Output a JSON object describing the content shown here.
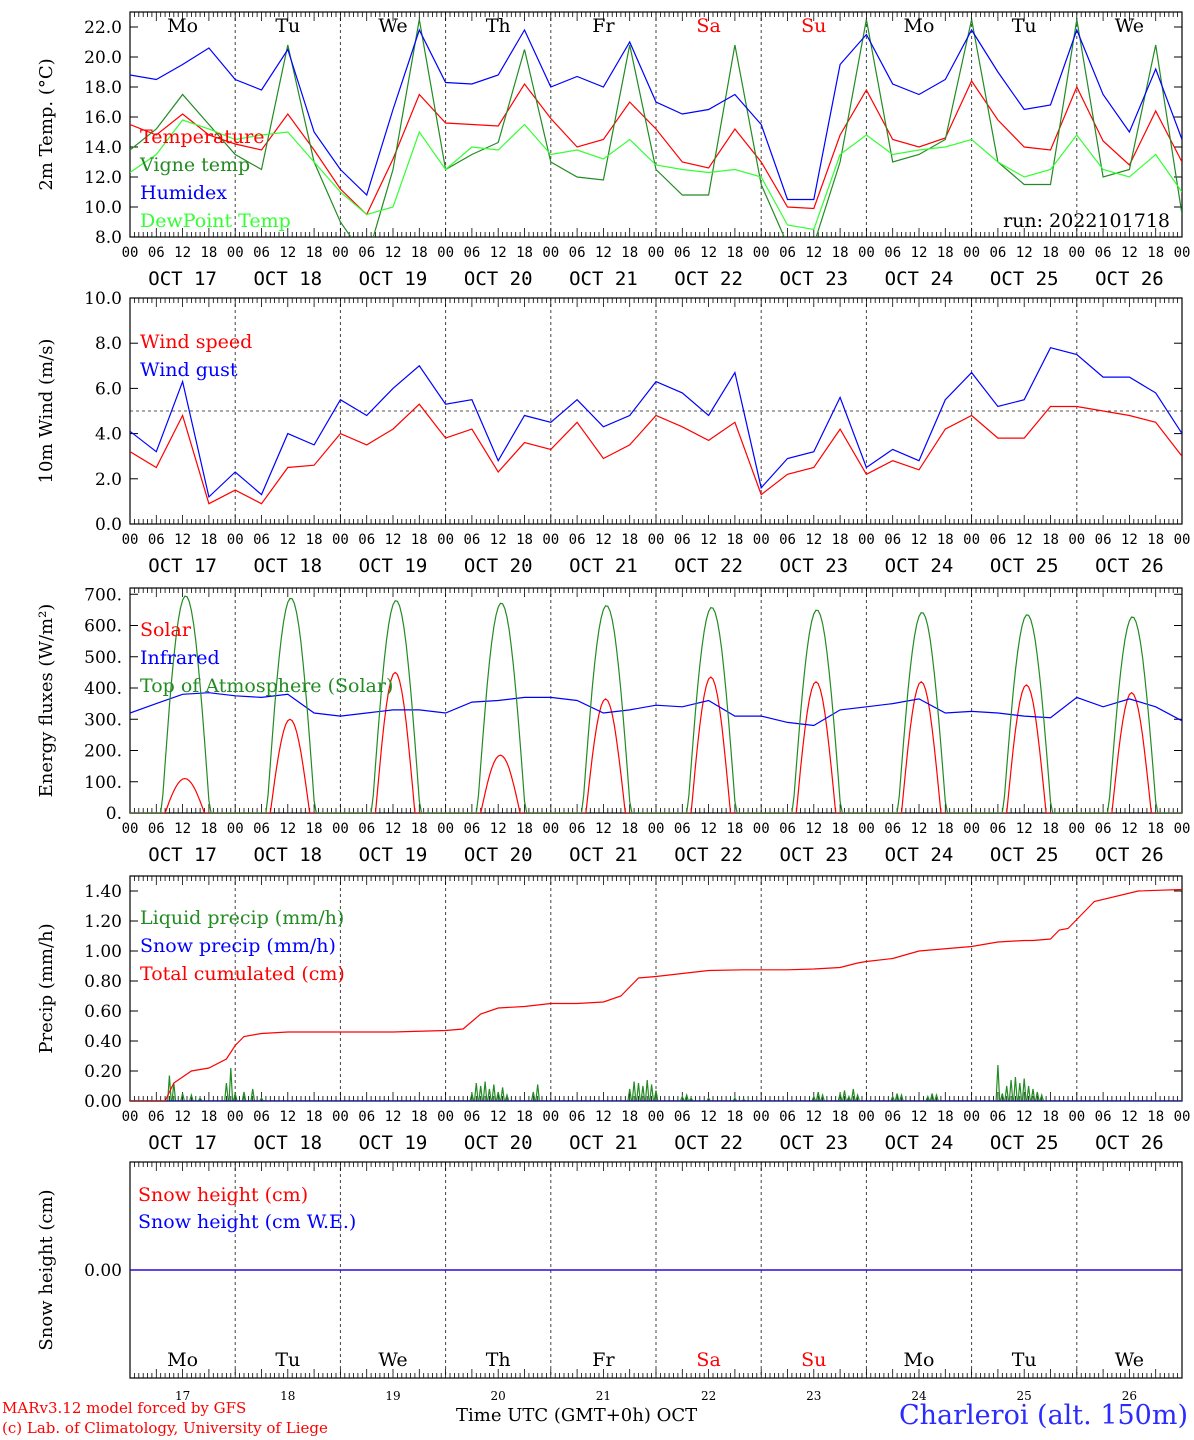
{
  "run_label": "run: 2022101718",
  "station": "Charleroi (alt. 150m)",
  "credits": [
    "MARv3.12 model forced by GFS",
    "(c) Lab. of Climatology, University of Liege"
  ],
  "time_axis": {
    "title": "Time UTC (GMT+0h) OCT",
    "hours": [
      "00",
      "06",
      "12",
      "18"
    ],
    "last_hour": "00",
    "day_labels": [
      "OCT 17",
      "OCT 18",
      "OCT 19",
      "OCT 20",
      "OCT 21",
      "OCT 22",
      "OCT 23",
      "OCT 24",
      "OCT 25",
      "OCT 26"
    ],
    "weekdays": [
      "Mo",
      "Tu",
      "We",
      "Th",
      "Fr",
      "Sa",
      "Su",
      "Mo",
      "Tu",
      "We"
    ],
    "weekend_color": "#ff0000",
    "day_numbers": [
      "17",
      "18",
      "19",
      "20",
      "21",
      "22",
      "23",
      "24",
      "25",
      "26"
    ]
  },
  "chart_data": [
    {
      "id": "temp",
      "type": "line",
      "ylabel": "2m Temp. (°C)",
      "ylim": [
        8,
        23
      ],
      "yticks": [
        8,
        10,
        12,
        14,
        16,
        18,
        20,
        22
      ],
      "decimals": 1,
      "show_weekdays": true,
      "series": [
        {
          "name": "Temperature",
          "color": "#ff0000",
          "x": [
            0,
            6,
            12,
            15,
            18,
            24,
            30,
            36,
            42,
            48,
            54,
            60,
            66,
            72,
            78,
            84,
            90,
            96,
            102,
            108,
            114,
            120,
            126,
            132,
            138,
            144,
            150,
            156,
            162,
            168,
            174,
            180,
            186,
            192,
            198,
            204,
            210,
            216,
            222,
            228,
            234,
            240
          ],
          "y": [
            15.5,
            14.8,
            16.2,
            15.5,
            14.8,
            14.2,
            13.8,
            16.2,
            13.8,
            11.2,
            9.5,
            13.2,
            17.5,
            15.6,
            15.5,
            15.4,
            18.2,
            15.9,
            14.0,
            14.5,
            17.0,
            15.2,
            13.0,
            12.6,
            15.2,
            13.0,
            10.0,
            9.9,
            14.8,
            17.8,
            14.5,
            14.0,
            14.6,
            18.4,
            15.8,
            14.0,
            13.8,
            18.0,
            14.4,
            12.8,
            16.4,
            13.0
          ]
        },
        {
          "name": "Vigne temp",
          "color": "#228b22",
          "x": [
            0,
            6,
            12,
            18,
            24,
            30,
            36,
            42,
            48,
            54,
            60,
            66,
            72,
            78,
            84,
            90,
            96,
            102,
            108,
            114,
            120,
            126,
            132,
            138,
            144,
            150,
            156,
            162,
            168,
            174,
            180,
            186,
            192,
            198,
            204,
            210,
            216,
            222,
            228,
            234,
            240
          ],
          "y": [
            13.8,
            15.2,
            17.5,
            15.5,
            13.5,
            12.5,
            20.8,
            13.0,
            9.0,
            6.5,
            12.5,
            22.5,
            12.5,
            13.5,
            14.3,
            20.5,
            13.0,
            12.0,
            11.8,
            20.8,
            12.5,
            10.8,
            10.8,
            20.8,
            11.5,
            7.5,
            7.5,
            13.0,
            22.5,
            13.0,
            13.5,
            14.5,
            22.5,
            13.0,
            11.5,
            11.5,
            22.5,
            12.0,
            12.5,
            20.8,
            9.5
          ]
        },
        {
          "name": "Humidex",
          "color": "#0000ff",
          "x": [
            0,
            6,
            12,
            18,
            24,
            30,
            36,
            42,
            48,
            54,
            60,
            66,
            72,
            78,
            84,
            90,
            96,
            102,
            108,
            114,
            120,
            126,
            132,
            138,
            144,
            150,
            156,
            162,
            168,
            174,
            180,
            186,
            192,
            198,
            204,
            210,
            216,
            222,
            228,
            234,
            240
          ],
          "y": [
            18.8,
            18.5,
            19.5,
            20.6,
            18.5,
            17.8,
            20.5,
            15.0,
            12.5,
            10.8,
            16.5,
            21.8,
            18.3,
            18.2,
            18.8,
            21.8,
            18.0,
            18.7,
            18.0,
            21.0,
            17.0,
            16.2,
            16.5,
            17.5,
            15.5,
            10.5,
            10.5,
            19.5,
            21.5,
            18.2,
            17.5,
            18.5,
            21.8,
            19.0,
            16.5,
            16.8,
            21.8,
            17.5,
            15.0,
            19.2,
            14.5
          ]
        },
        {
          "name": "DewPoint Temp",
          "color": "#33ff33",
          "x": [
            0,
            6,
            12,
            18,
            24,
            30,
            36,
            42,
            48,
            54,
            60,
            66,
            72,
            78,
            84,
            90,
            96,
            102,
            108,
            114,
            120,
            126,
            132,
            138,
            144,
            150,
            156,
            162,
            168,
            174,
            180,
            186,
            192,
            198,
            204,
            210,
            216,
            222,
            228,
            234,
            240
          ],
          "y": [
            12.3,
            13.5,
            15.8,
            15.2,
            14.5,
            14.8,
            15.0,
            13.0,
            11.0,
            9.5,
            10.0,
            15.0,
            12.5,
            14.0,
            13.8,
            15.5,
            13.5,
            13.8,
            13.2,
            14.5,
            12.8,
            12.5,
            12.3,
            12.5,
            12.0,
            8.8,
            8.5,
            13.5,
            14.8,
            13.5,
            13.8,
            14.0,
            14.5,
            13.0,
            12.0,
            12.5,
            14.8,
            12.5,
            12.0,
            13.5,
            11.0
          ]
        }
      ]
    },
    {
      "id": "wind",
      "type": "line",
      "ylabel": "10m Wind (m/s)",
      "ylim": [
        0,
        10
      ],
      "yticks": [
        0,
        2,
        4,
        6,
        8,
        10
      ],
      "decimals": 1,
      "ref_line": 5.0,
      "series": [
        {
          "name": "Wind speed",
          "color": "#ff0000",
          "x": [
            0,
            6,
            12,
            18,
            24,
            30,
            36,
            42,
            48,
            54,
            60,
            66,
            72,
            78,
            84,
            90,
            96,
            102,
            108,
            114,
            120,
            126,
            132,
            138,
            144,
            150,
            156,
            162,
            168,
            174,
            180,
            186,
            192,
            198,
            204,
            210,
            216,
            222,
            228,
            234,
            240
          ],
          "y": [
            3.2,
            2.5,
            4.8,
            0.9,
            1.5,
            0.9,
            2.5,
            2.6,
            4.0,
            3.5,
            4.2,
            5.3,
            3.8,
            4.2,
            2.3,
            3.6,
            3.3,
            4.5,
            2.9,
            3.5,
            4.8,
            4.3,
            3.7,
            4.5,
            1.3,
            2.2,
            2.5,
            4.2,
            2.2,
            2.8,
            2.4,
            4.2,
            4.8,
            3.8,
            3.8,
            5.2,
            5.2,
            5.0,
            4.8,
            4.5,
            3.0
          ]
        },
        {
          "name": "Wind gust",
          "color": "#0000ff",
          "x": [
            0,
            6,
            12,
            18,
            24,
            30,
            36,
            42,
            48,
            54,
            60,
            66,
            72,
            78,
            84,
            90,
            96,
            102,
            108,
            114,
            120,
            126,
            132,
            138,
            144,
            150,
            156,
            162,
            168,
            174,
            180,
            186,
            192,
            198,
            204,
            210,
            216,
            222,
            228,
            234,
            240
          ],
          "y": [
            4.1,
            3.2,
            6.3,
            1.2,
            2.3,
            1.3,
            4.0,
            3.5,
            5.5,
            4.8,
            6.0,
            7.0,
            5.3,
            5.5,
            2.8,
            4.8,
            4.5,
            5.5,
            4.3,
            4.8,
            6.3,
            5.8,
            4.8,
            6.7,
            1.6,
            2.9,
            3.2,
            5.6,
            2.5,
            3.3,
            2.8,
            5.5,
            6.7,
            5.2,
            5.5,
            7.8,
            7.5,
            6.5,
            6.5,
            5.8,
            4.0
          ]
        }
      ]
    },
    {
      "id": "flux",
      "type": "line",
      "ylabel": "Energy fluxes (W/m²)",
      "ylim": [
        0,
        720
      ],
      "yticks": [
        0,
        100,
        200,
        300,
        400,
        500,
        600,
        700
      ],
      "tick_labels": [
        "0.",
        "100.",
        "200.",
        "300.",
        "400.",
        "500.",
        "600.",
        "700."
      ],
      "series": [
        {
          "name": "Solar",
          "color": "#ff0000",
          "kind": "diurnal",
          "rise": 8,
          "set": 17,
          "peaks": [
            110,
            300,
            450,
            185,
            365,
            435,
            420,
            420,
            410,
            385
          ]
        },
        {
          "name": "Infrared",
          "color": "#0000ff",
          "x": [
            0,
            6,
            12,
            18,
            24,
            30,
            36,
            42,
            48,
            54,
            60,
            66,
            72,
            78,
            84,
            90,
            96,
            102,
            108,
            114,
            120,
            126,
            132,
            138,
            144,
            150,
            156,
            162,
            168,
            174,
            180,
            186,
            192,
            198,
            204,
            210,
            216,
            222,
            228,
            234,
            240
          ],
          "y": [
            320,
            350,
            380,
            385,
            375,
            370,
            380,
            320,
            310,
            320,
            330,
            330,
            320,
            355,
            360,
            370,
            370,
            360,
            320,
            330,
            345,
            340,
            360,
            310,
            310,
            290,
            280,
            330,
            340,
            350,
            365,
            320,
            325,
            320,
            310,
            305,
            370,
            340,
            365,
            340,
            295
          ]
        },
        {
          "name": "Top of Atmosphere (Solar)",
          "color": "#228b22",
          "kind": "diurnal",
          "rise": 7.2,
          "set": 18.2,
          "peaks": [
            695,
            688,
            680,
            672,
            664,
            658,
            650,
            642,
            635,
            628
          ]
        }
      ]
    },
    {
      "id": "precip",
      "type": "line",
      "ylabel": "Precip (mm/h)",
      "ylim": [
        0,
        1.5
      ],
      "yticks": [
        0,
        0.2,
        0.4,
        0.6,
        0.8,
        1.0,
        1.2,
        1.4
      ],
      "decimals": 2,
      "series": [
        {
          "name": "Liquid precip (mm/h)",
          "color": "#228b22",
          "kind": "spikes",
          "x": [
            9,
            10,
            12,
            14,
            16,
            22,
            23,
            24,
            26,
            28,
            30,
            78,
            79,
            80,
            81,
            82,
            83,
            84,
            85,
            86,
            92,
            93,
            114,
            115,
            116,
            117,
            118,
            119,
            120,
            126,
            127,
            128,
            132,
            138,
            140,
            156,
            157,
            158,
            162,
            163,
            164,
            165,
            166,
            174,
            175,
            176,
            182,
            183,
            184,
            198,
            199,
            200,
            201,
            202,
            203,
            204,
            205,
            206,
            207,
            208
          ],
          "y": [
            0.17,
            0.12,
            0.05,
            0.04,
            0.02,
            0.12,
            0.22,
            0.05,
            0.06,
            0.08,
            0.02,
            0.05,
            0.12,
            0.1,
            0.13,
            0.08,
            0.11,
            0.06,
            0.09,
            0.04,
            0.06,
            0.11,
            0.08,
            0.13,
            0.12,
            0.1,
            0.14,
            0.11,
            0.07,
            0.03,
            0.04,
            0.02,
            0.02,
            0.02,
            0.01,
            0.03,
            0.06,
            0.04,
            0.05,
            0.07,
            0.03,
            0.08,
            0.04,
            0.03,
            0.05,
            0.04,
            0.03,
            0.05,
            0.04,
            0.24,
            0.05,
            0.1,
            0.14,
            0.16,
            0.12,
            0.15,
            0.1,
            0.08,
            0.06,
            0.04
          ]
        },
        {
          "name": "Snow precip (mm/h)",
          "color": "#0000ff",
          "x": [
            0,
            240
          ],
          "y": [
            0,
            0
          ]
        },
        {
          "name": "Total cumulated (cm)",
          "color": "#ff0000",
          "x": [
            0,
            8,
            10,
            14,
            18,
            22,
            24,
            26,
            30,
            36,
            48,
            60,
            72,
            76,
            80,
            84,
            90,
            96,
            102,
            108,
            112,
            114,
            116,
            120,
            126,
            132,
            140,
            150,
            156,
            162,
            166,
            168,
            174,
            180,
            184,
            192,
            198,
            204,
            206,
            210,
            212,
            214,
            220,
            230,
            240
          ],
          "y": [
            0,
            0,
            0.12,
            0.2,
            0.22,
            0.28,
            0.37,
            0.43,
            0.45,
            0.46,
            0.46,
            0.46,
            0.47,
            0.48,
            0.58,
            0.62,
            0.63,
            0.65,
            0.65,
            0.66,
            0.7,
            0.76,
            0.82,
            0.83,
            0.85,
            0.87,
            0.875,
            0.875,
            0.88,
            0.89,
            0.92,
            0.93,
            0.95,
            1.0,
            1.01,
            1.03,
            1.06,
            1.07,
            1.07,
            1.08,
            1.14,
            1.15,
            1.33,
            1.4,
            1.41
          ]
        }
      ]
    },
    {
      "id": "snow",
      "type": "line",
      "ylabel": "Snow height (cm)",
      "ylim": [
        -1,
        1
      ],
      "yticks": [
        0
      ],
      "decimals": 2,
      "series": [
        {
          "name": "Snow height (cm)",
          "color": "#ff0000",
          "x": [
            0,
            240
          ],
          "y": [
            0,
            0
          ]
        },
        {
          "name": "Snow height (cm W.E.)",
          "color": "#0000ff",
          "x": [
            0,
            240
          ],
          "y": [
            0,
            0
          ]
        }
      ]
    }
  ]
}
